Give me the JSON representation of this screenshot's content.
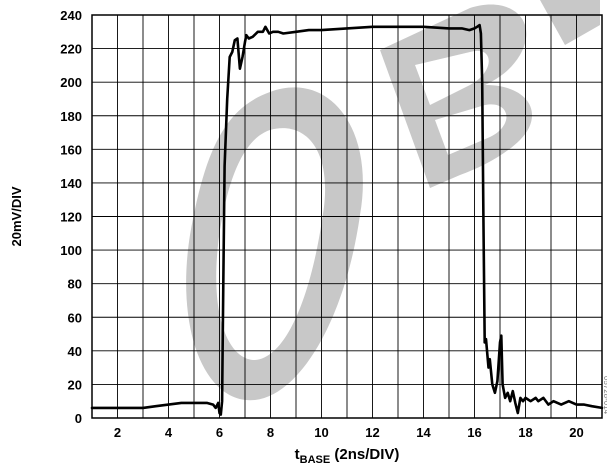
{
  "chart_data": {
    "type": "line",
    "title": "",
    "xlabel": "t",
    "xlabel_sub": "BASE",
    "xlabel_suffix": " (2ns/DIV)",
    "ylabel": "20mV/DIV",
    "xlim": [
      1,
      21
    ],
    "ylim": [
      0,
      240
    ],
    "x_ticks": [
      "2",
      "4",
      "6",
      "8",
      "10",
      "12",
      "14",
      "16",
      "18",
      "20"
    ],
    "y_ticks": [
      "0",
      "20",
      "40",
      "60",
      "80",
      "100",
      "120",
      "140",
      "160",
      "180",
      "200",
      "220",
      "240"
    ],
    "grid": true,
    "series": [
      {
        "x": [
          1.0,
          1.5,
          2.0,
          2.5,
          3.0,
          3.5,
          4.0,
          4.5,
          5.0,
          5.5,
          5.75,
          5.85,
          5.95,
          6.0,
          6.05,
          6.1,
          6.15,
          6.2,
          6.3,
          6.4,
          6.5,
          6.6,
          6.7,
          6.8,
          6.9,
          7.0,
          7.05,
          7.15,
          7.3,
          7.5,
          7.7,
          7.8,
          7.95,
          8.1,
          8.3,
          8.5,
          9.0,
          9.5,
          10.0,
          11.0,
          12.0,
          13.0,
          14.0,
          15.0,
          15.5,
          15.8,
          16.0,
          16.1,
          16.2,
          16.25,
          16.3,
          16.35,
          16.4,
          16.45,
          16.55,
          16.6,
          16.7,
          16.8,
          16.9,
          17.0,
          17.05,
          17.1,
          17.2,
          17.3,
          17.4,
          17.5,
          17.6,
          17.7,
          17.8,
          17.9,
          18.0,
          18.2,
          18.4,
          18.5,
          18.7,
          18.9,
          19.1,
          19.4,
          19.7,
          20.0,
          20.3,
          20.6,
          21.0
        ],
        "y": [
          6,
          6,
          6,
          6,
          6,
          7,
          8,
          9,
          9,
          9,
          8,
          6,
          9,
          3,
          2,
          10,
          80,
          150,
          190,
          215,
          218,
          225,
          226,
          208,
          215,
          224,
          228,
          226,
          227,
          230,
          230,
          233,
          229,
          230,
          230,
          229,
          230,
          231,
          231,
          232,
          233,
          233,
          233,
          232,
          232,
          231,
          232,
          233,
          234,
          229,
          200,
          120,
          45,
          47,
          30,
          35,
          20,
          15,
          22,
          45,
          49,
          20,
          12,
          15,
          10,
          16,
          9,
          3,
          12,
          10,
          12,
          10,
          12,
          10,
          12,
          8,
          10,
          8,
          10,
          8,
          8,
          7,
          6
        ]
      }
    ]
  },
  "watermark": {
    "text": "OBSOLETE",
    "color": "#c8c8c8"
  },
  "side_code": "05728-014"
}
